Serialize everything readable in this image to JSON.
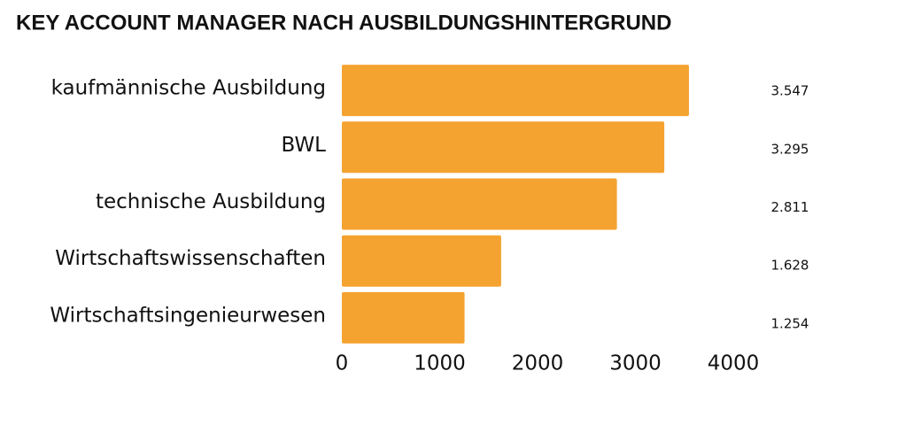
{
  "chart_data": {
    "type": "bar",
    "orientation": "horizontal",
    "title": "KEY ACCOUNT MANAGER NACH AUSBILDUNGSHINTERGRUND",
    "categories": [
      "kaufmännische Ausbildung",
      "BWL",
      "technische Ausbildung",
      "Wirtschaftswissenschaften",
      "Wirtschaftsingenieurwesen"
    ],
    "values": [
      3547,
      3295,
      2811,
      1628,
      1254
    ],
    "value_labels": [
      "3.547",
      "3.295",
      "2.811",
      "1.628",
      "1.254"
    ],
    "color": "#f4a230",
    "xlim": [
      0,
      4000
    ],
    "xticks": [
      0,
      1000,
      2000,
      3000,
      4000
    ],
    "grid": false
  }
}
